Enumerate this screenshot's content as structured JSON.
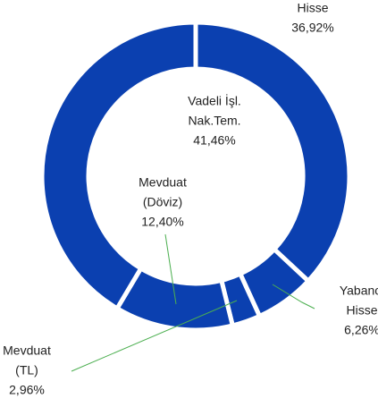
{
  "chart_data": {
    "type": "donut",
    "categories": [
      [
        "Hisse"
      ],
      [
        "Yabancı",
        "Hisse"
      ],
      [
        "Mevduat",
        "(TL)"
      ],
      [
        "Mevduat",
        "(Döviz)"
      ],
      [
        "Vadeli İşl.",
        "Nak.Tem."
      ]
    ],
    "values": [
      36.92,
      6.26,
      2.96,
      12.4,
      41.46
    ],
    "value_labels": [
      "36,92%",
      "6,26%",
      "2,96%",
      "12,40%",
      "41,46%"
    ],
    "color": "#0b40b0"
  }
}
